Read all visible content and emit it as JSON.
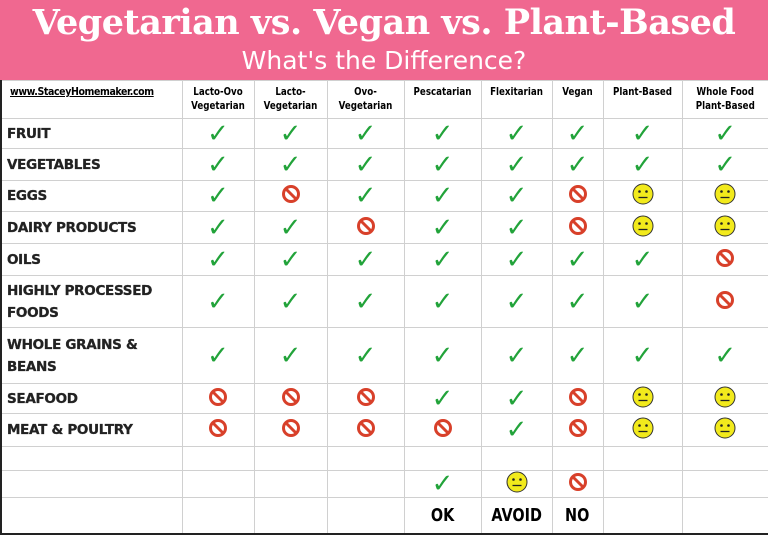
{
  "header": {
    "title": "Vegetarian vs. Vegan vs. Plant-Based",
    "subtitle": "What's the Difference?"
  },
  "site": "www.StaceyHomemaker.com",
  "columns": [
    [
      "Lacto-Ovo",
      "Vegetarian"
    ],
    [
      "Lacto-",
      "Vegetarian"
    ],
    [
      "Ovo-",
      "Vegetarian"
    ],
    [
      "Pescatarian",
      ""
    ],
    [
      "Flexitarian",
      ""
    ],
    [
      "Vegan",
      ""
    ],
    [
      "Plant-Based",
      ""
    ],
    [
      "Whole Food",
      "Plant-Based"
    ]
  ],
  "rows": [
    {
      "food": "Fruit",
      "values": [
        "ok",
        "ok",
        "ok",
        "ok",
        "ok",
        "ok",
        "ok",
        "ok"
      ]
    },
    {
      "food": "Vegetables",
      "values": [
        "ok",
        "ok",
        "ok",
        "ok",
        "ok",
        "ok",
        "ok",
        "ok"
      ]
    },
    {
      "food": "Eggs",
      "values": [
        "ok",
        "no",
        "ok",
        "ok",
        "ok",
        "no",
        "avoid",
        "avoid"
      ]
    },
    {
      "food": "Dairy Products",
      "values": [
        "ok",
        "ok",
        "no",
        "ok",
        "ok",
        "no",
        "avoid",
        "avoid"
      ]
    },
    {
      "food": "Oils",
      "values": [
        "ok",
        "ok",
        "ok",
        "ok",
        "ok",
        "ok",
        "ok",
        "no"
      ]
    },
    {
      "food": "Highly Processed Foods",
      "values": [
        "ok",
        "ok",
        "ok",
        "ok",
        "ok",
        "ok",
        "ok",
        "no"
      ]
    },
    {
      "food": "Whole Grains & Beans",
      "values": [
        "ok",
        "ok",
        "ok",
        "ok",
        "ok",
        "ok",
        "ok",
        "ok"
      ]
    },
    {
      "food": "Seafood",
      "values": [
        "no",
        "no",
        "no",
        "ok",
        "ok",
        "no",
        "avoid",
        "avoid"
      ]
    },
    {
      "food": "Meat & Poultry",
      "values": [
        "no",
        "no",
        "no",
        "no",
        "ok",
        "no",
        "avoid",
        "avoid"
      ]
    }
  ],
  "legend": [
    {
      "icon": "ok",
      "label": "OK"
    },
    {
      "icon": "avoid",
      "label": "AVOID"
    },
    {
      "icon": "no",
      "label": "NO"
    }
  ],
  "colors": {
    "banner": "#f06890",
    "ok": "#22a33a",
    "no": "#d8402a",
    "avoid": "#f2ea1c"
  }
}
